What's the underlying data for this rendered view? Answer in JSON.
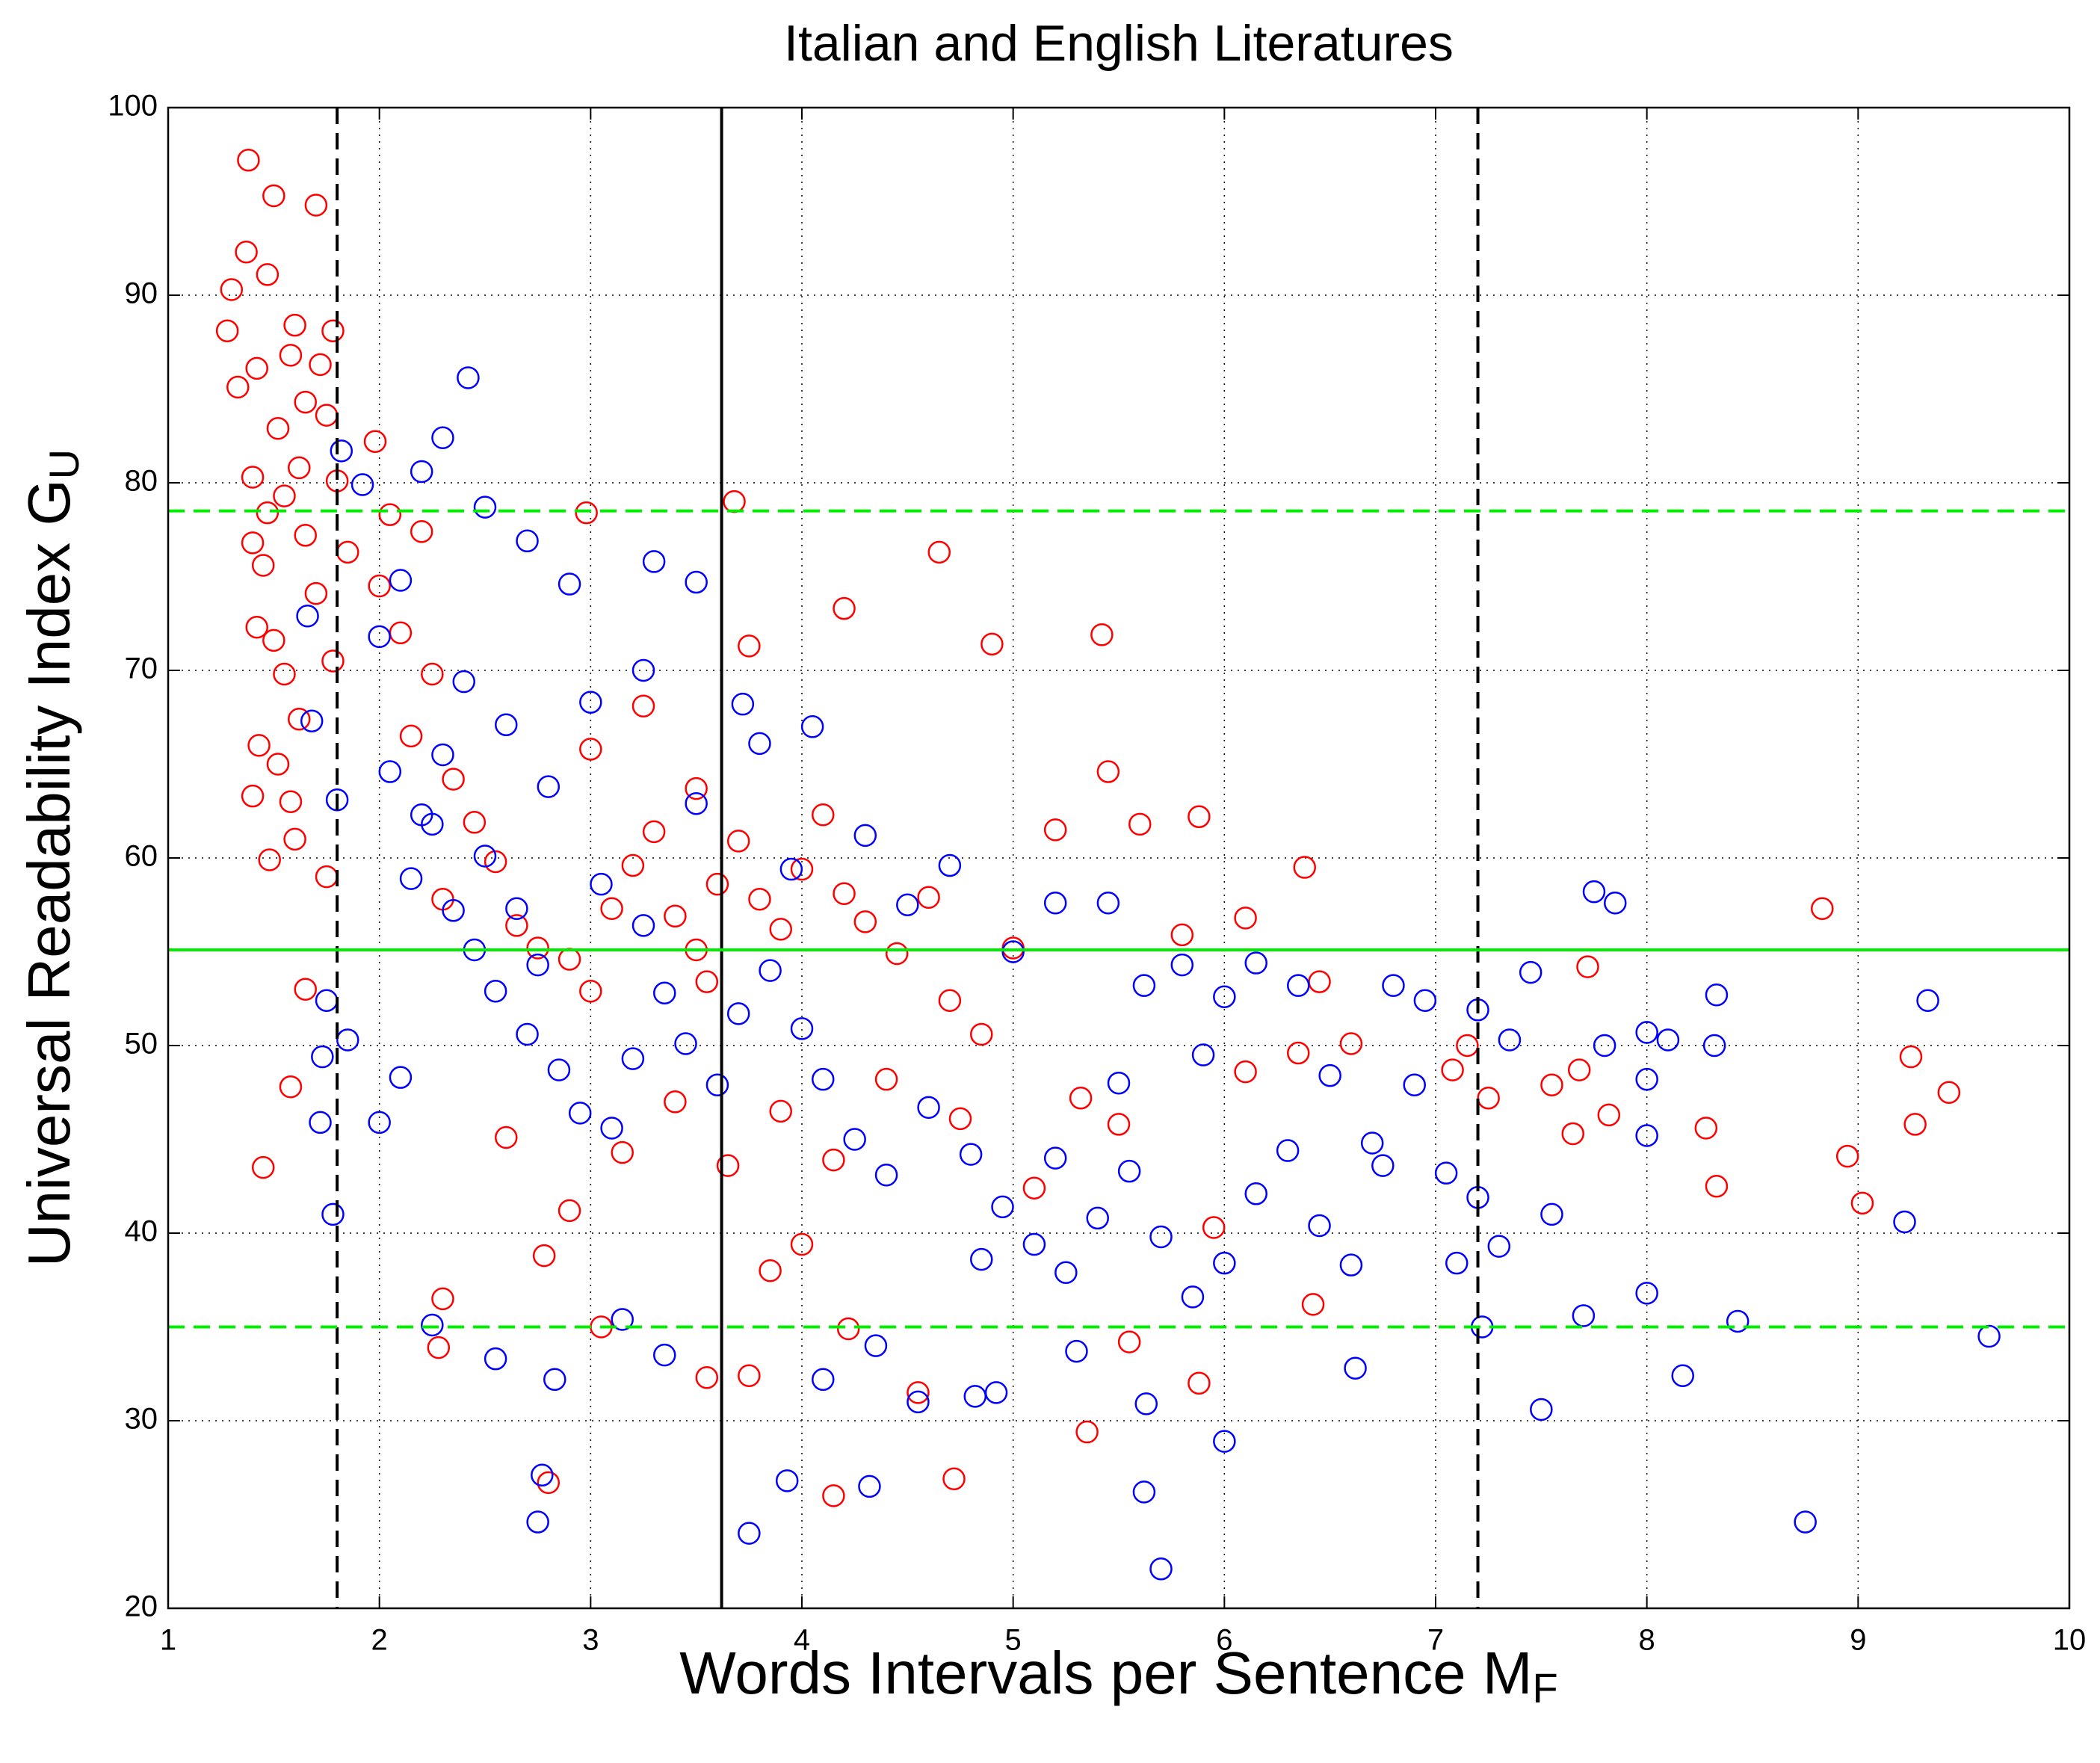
{
  "chart_data": {
    "type": "scatter",
    "title": "Italian and English Literatures",
    "x_label": "Words Intervals per Sentence M",
    "x_label_sub": "F",
    "y_label": "Universal Readability Index G",
    "y_label_sub": "U",
    "xlim": [
      1,
      10
    ],
    "ylim": [
      20,
      100
    ],
    "xticks": [
      1,
      2,
      3,
      4,
      5,
      6,
      7,
      8,
      9,
      10
    ],
    "yticks": [
      20,
      30,
      40,
      50,
      60,
      70,
      80,
      90,
      100
    ],
    "grid": true,
    "marker": "circle",
    "series": [
      {
        "color": "#ff0000",
        "x": [
          1.38,
          1.7,
          1.5,
          1.37,
          1.3,
          1.47,
          1.28,
          1.6,
          1.78,
          1.33,
          1.42,
          1.58,
          1.72,
          1.65,
          1.52,
          1.75,
          1.4,
          1.62,
          1.8,
          1.55,
          1.47,
          1.4,
          1.65,
          1.85,
          1.45,
          1.7,
          1.42,
          1.5,
          1.78,
          1.55,
          1.43,
          1.62,
          1.52,
          1.58,
          1.4,
          1.6,
          1.48,
          1.75,
          1.65,
          1.58,
          1.45,
          1.98,
          2.05,
          2.2,
          2.0,
          2.1,
          2.25,
          2.15,
          2.35,
          2.45,
          2.55,
          2.3,
          2.65,
          2.75,
          2.9,
          3.0,
          3.1,
          3.2,
          3.3,
          3.4,
          3.5,
          3.55,
          3.6,
          3.7,
          3.8,
          3.9,
          4.0,
          4.1,
          4.2,
          4.3,
          4.45,
          4.6,
          4.7,
          4.85,
          5.0,
          3.0,
          3.25,
          3.5,
          3.75,
          3.68,
          2.98,
          4.2,
          4.65,
          4.9,
          5.42,
          5.45,
          5.6,
          5.88,
          6.38,
          5.2,
          5.8,
          6.1,
          6.45,
          6.35,
          6.6,
          7.15,
          7.08,
          7.25,
          7.55,
          7.65,
          7.72,
          7.68,
          7.82,
          8.28,
          8.33,
          8.83,
          8.95,
          9.02,
          9.25,
          9.27,
          9.43,
          2.3,
          2.28,
          2.78,
          2.8,
          3.05,
          3.55,
          3.75,
          4.15,
          4.22,
          4.55,
          4.72,
          5.35,
          5.88,
          5.55,
          2.6,
          2.9,
          3.15,
          3.4,
          3.65,
          3.9,
          4.15,
          4.4,
          4.75,
          5.1,
          5.32,
          5.95,
          6.42,
          4.0,
          3.85,
          5.5,
          6.1
        ],
        "y": [
          97.2,
          94.8,
          95.3,
          92.3,
          90.3,
          91.1,
          88.1,
          88.4,
          88.1,
          85.1,
          86.1,
          86.8,
          86.3,
          84.3,
          82.9,
          83.6,
          80.3,
          80.8,
          80.1,
          79.3,
          78.4,
          76.8,
          77.2,
          76.3,
          75.6,
          74.1,
          72.3,
          71.6,
          70.5,
          69.8,
          66.0,
          67.4,
          65.0,
          63.0,
          63.3,
          61.0,
          59.9,
          59.0,
          53.0,
          47.8,
          43.5,
          82.2,
          78.3,
          77.4,
          74.5,
          72.0,
          69.8,
          66.5,
          64.2,
          61.9,
          59.8,
          57.8,
          56.4,
          55.2,
          54.6,
          52.9,
          57.3,
          59.6,
          61.4,
          56.9,
          55.1,
          53.4,
          58.6,
          60.9,
          57.8,
          56.2,
          59.4,
          62.3,
          58.1,
          56.6,
          54.9,
          57.9,
          52.4,
          50.6,
          55.2,
          65.8,
          68.1,
          63.7,
          71.3,
          79.0,
          78.4,
          73.3,
          76.3,
          71.4,
          71.9,
          64.6,
          61.8,
          62.2,
          59.5,
          61.5,
          55.9,
          56.8,
          53.4,
          49.6,
          50.1,
          50.0,
          48.7,
          47.2,
          47.9,
          45.3,
          54.2,
          48.7,
          46.3,
          45.6,
          42.5,
          57.3,
          44.1,
          41.6,
          49.4,
          45.8,
          47.5,
          36.5,
          33.9,
          38.8,
          26.7,
          35.0,
          32.3,
          32.4,
          26.0,
          34.9,
          31.5,
          26.9,
          29.4,
          32.0,
          34.2,
          45.1,
          41.2,
          44.3,
          47.0,
          43.6,
          46.5,
          43.9,
          48.2,
          46.1,
          42.4,
          47.2,
          40.3,
          36.2,
          39.4,
          38.0,
          45.8,
          48.6
        ]
      },
      {
        "color": "#0000ff",
        "x": [
          2.42,
          1.82,
          2.3,
          2.2,
          2.5,
          1.92,
          2.7,
          2.1,
          2.9,
          3.3,
          3.5,
          2.0,
          2.4,
          2.6,
          2.8,
          2.05,
          2.25,
          2.15,
          2.35,
          2.45,
          2.55,
          2.7,
          2.85,
          2.95,
          3.1,
          3.2,
          3.35,
          3.45,
          3.6,
          3.7,
          3.85,
          4.0,
          4.1,
          4.25,
          4.4,
          4.6,
          4.8,
          4.95,
          5.1,
          5.25,
          5.4,
          5.55,
          5.7,
          5.85,
          6.0,
          6.15,
          6.3,
          6.45,
          6.6,
          6.75,
          6.9,
          7.05,
          7.2,
          7.3,
          7.45,
          7.55,
          7.75,
          7.85,
          7.8,
          8.0,
          8.0,
          8.0,
          8.1,
          8.33,
          8.32,
          9.33,
          9.22,
          9.62,
          8.75,
          8.43,
          8.17,
          8.0,
          7.5,
          7.7,
          6.62,
          6.0,
          5.7,
          5.62,
          5.63,
          4.55,
          4.32,
          3.93,
          3.75,
          2.77,
          2.75,
          2.83,
          2.55,
          2.25,
          3.15,
          3.35,
          4.1,
          4.35,
          4.82,
          4.92,
          5.3,
          1.78,
          1.72,
          1.73,
          1.75,
          1.8,
          1.68,
          1.66,
          1.85,
          2.0,
          2.1,
          2.2,
          2.3,
          2.5,
          2.65,
          2.75,
          3.05,
          3.25,
          3.5,
          3.8,
          4.05,
          3.95,
          4.3,
          4.5,
          4.7,
          5.0,
          5.2,
          5.45,
          5.62,
          5.8,
          6.0,
          6.15,
          6.35,
          6.8,
          6.95,
          7.2,
          7.35,
          5.5,
          5.9,
          6.5,
          7.1,
          7.22,
          6.7,
          5.2,
          4.85,
          3.25,
          3.0,
          3.72
        ],
        "y": [
          85.6,
          81.7,
          82.4,
          80.6,
          78.7,
          79.9,
          76.9,
          74.8,
          74.6,
          75.8,
          74.7,
          71.8,
          69.4,
          67.1,
          63.8,
          64.6,
          61.8,
          58.9,
          57.2,
          55.1,
          52.9,
          50.6,
          48.7,
          46.4,
          45.6,
          49.3,
          52.8,
          50.1,
          47.9,
          51.7,
          54.0,
          50.9,
          48.2,
          45.0,
          43.1,
          46.7,
          44.2,
          41.4,
          39.4,
          37.9,
          40.8,
          43.3,
          39.8,
          36.6,
          38.4,
          42.1,
          44.4,
          40.4,
          38.3,
          43.6,
          47.9,
          43.2,
          41.9,
          39.3,
          53.9,
          41.0,
          58.2,
          57.6,
          50.0,
          50.7,
          48.2,
          45.2,
          50.3,
          52.7,
          50.0,
          52.4,
          40.6,
          34.5,
          24.6,
          35.3,
          32.4,
          36.8,
          30.6,
          35.6,
          32.8,
          28.9,
          22.1,
          26.2,
          30.9,
          31.0,
          26.5,
          26.8,
          24.0,
          27.1,
          24.6,
          32.2,
          33.3,
          35.1,
          35.4,
          33.5,
          32.2,
          34.0,
          31.3,
          31.5,
          33.7,
          41.0,
          45.9,
          49.4,
          52.4,
          63.1,
          67.3,
          72.9,
          50.3,
          45.9,
          48.3,
          62.3,
          65.5,
          60.1,
          57.3,
          54.3,
          58.6,
          56.4,
          62.9,
          66.1,
          67.0,
          59.4,
          61.2,
          57.5,
          59.6,
          55.0,
          57.6,
          57.6,
          53.2,
          54.3,
          52.6,
          54.4,
          53.2,
          53.2,
          52.4,
          51.9,
          50.3,
          48.0,
          49.5,
          48.4,
          38.4,
          35.0,
          44.8,
          44.0,
          38.6,
          70.0,
          68.3,
          68.2
        ]
      }
    ],
    "reference_lines": [
      {
        "axis": "x",
        "value": 1.8,
        "style": "dashed",
        "color": "#000000"
      },
      {
        "axis": "x",
        "value": 3.62,
        "style": "solid",
        "color": "#000000"
      },
      {
        "axis": "x",
        "value": 7.2,
        "style": "dashed",
        "color": "#000000"
      },
      {
        "axis": "y",
        "value": 78.5,
        "style": "dashed",
        "color": "#00ee00"
      },
      {
        "axis": "y",
        "value": 55.1,
        "style": "solid",
        "color": "#00ee00"
      },
      {
        "axis": "y",
        "value": 35.0,
        "style": "dashed",
        "color": "#00ee00"
      }
    ]
  }
}
